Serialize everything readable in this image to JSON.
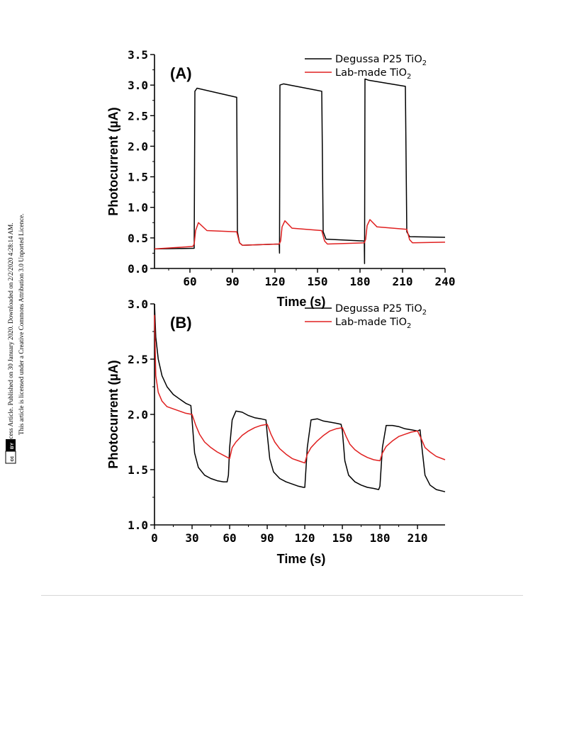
{
  "sidebar": {
    "line1": "Open Access Article. Published on 30 January 2020. Downloaded on 2/2/2020 4:28:14 AM.",
    "line2": "This article is licensed under a Creative Commons Attribution 3.0 Unported Licence.",
    "badge_cc": "cc",
    "badge_by": "BY"
  },
  "chart_data": [
    {
      "type": "line",
      "panel_label": "(A)",
      "xlabel": "Time (s)",
      "ylabel": "Photocurrent (µA)",
      "xlim": [
        35,
        240
      ],
      "ylim": [
        0.0,
        3.5
      ],
      "x_ticks": [
        "60",
        "90",
        "120",
        "150",
        "180",
        "210",
        "240"
      ],
      "y_ticks": [
        "0.0",
        "0.5",
        "1.0",
        "1.5",
        "2.0",
        "2.5",
        "3.0",
        "3.5"
      ],
      "legend_position": "top-right",
      "colors": {
        "Degussa P25 TiO2": "#000000",
        "Lab-made TiO2": "#e02020"
      },
      "series": [
        {
          "name": "Degussa P25 TiO2",
          "legend_base": "Degussa P25 TiO",
          "legend_sub": "2",
          "x": [
            35,
            63,
            63.5,
            65,
            93,
            93.5,
            95,
            97,
            123,
            123.2,
            123.5,
            126,
            153,
            154,
            156,
            183,
            183.2,
            183.5,
            186,
            212,
            213,
            215,
            240
          ],
          "y": [
            0.32,
            0.33,
            2.9,
            2.95,
            2.8,
            0.6,
            0.42,
            0.38,
            0.4,
            0.25,
            3.0,
            3.02,
            2.9,
            0.6,
            0.48,
            0.45,
            0.08,
            3.1,
            3.08,
            2.98,
            0.6,
            0.52,
            0.51
          ]
        },
        {
          "name": "Lab-made TiO2",
          "legend_base": "Lab-made TiO",
          "legend_sub": "2",
          "x": [
            35,
            62,
            63,
            64,
            66,
            72,
            93,
            95,
            97,
            123,
            124,
            125,
            127,
            132,
            153,
            155,
            157,
            183,
            184,
            185,
            187,
            192,
            213,
            215,
            217,
            240
          ],
          "y": [
            0.32,
            0.36,
            0.4,
            0.62,
            0.75,
            0.62,
            0.6,
            0.42,
            0.38,
            0.4,
            0.45,
            0.68,
            0.78,
            0.66,
            0.62,
            0.45,
            0.4,
            0.42,
            0.48,
            0.7,
            0.8,
            0.68,
            0.64,
            0.47,
            0.42,
            0.43
          ]
        }
      ]
    },
    {
      "type": "line",
      "panel_label": "(B)",
      "xlabel": "Time (s)",
      "ylabel": "Photocurrent (µA)",
      "xlim": [
        0,
        232
      ],
      "ylim": [
        1.0,
        3.0
      ],
      "x_ticks": [
        "0",
        "30",
        "60",
        "90",
        "120",
        "150",
        "180",
        "210"
      ],
      "y_ticks": [
        "1.0",
        "1.5",
        "2.0",
        "2.5",
        "3.0"
      ],
      "legend_position": "top-right",
      "colors": {
        "Degussa P25 TiO2": "#000000",
        "Lab-made TiO2": "#e02020"
      },
      "series": [
        {
          "name": "Degussa P25 TiO2",
          "legend_base": "Degussa P25 TiO",
          "legend_sub": "2",
          "x": [
            0,
            1,
            3,
            6,
            10,
            15,
            20,
            25,
            29,
            30,
            32,
            35,
            40,
            45,
            50,
            55,
            58,
            59,
            60,
            62,
            65,
            70,
            75,
            80,
            85,
            89,
            90,
            92,
            95,
            100,
            105,
            110,
            115,
            119,
            120,
            122,
            125,
            130,
            135,
            140,
            145,
            149,
            150,
            152,
            155,
            160,
            165,
            170,
            175,
            179,
            180,
            182,
            185,
            190,
            195,
            200,
            205,
            210,
            212,
            214,
            216,
            220,
            225,
            232
          ],
          "y": [
            3.0,
            2.7,
            2.5,
            2.35,
            2.25,
            2.18,
            2.14,
            2.1,
            2.08,
            1.95,
            1.65,
            1.52,
            1.45,
            1.42,
            1.4,
            1.39,
            1.39,
            1.45,
            1.7,
            1.95,
            2.03,
            2.02,
            1.99,
            1.97,
            1.96,
            1.95,
            1.82,
            1.6,
            1.48,
            1.42,
            1.39,
            1.37,
            1.35,
            1.34,
            1.34,
            1.7,
            1.95,
            1.96,
            1.94,
            1.93,
            1.92,
            1.91,
            1.85,
            1.58,
            1.45,
            1.39,
            1.36,
            1.34,
            1.33,
            1.32,
            1.35,
            1.7,
            1.9,
            1.9,
            1.89,
            1.87,
            1.86,
            1.85,
            1.86,
            1.65,
            1.45,
            1.36,
            1.32,
            1.3
          ]
        },
        {
          "name": "Lab-made TiO2",
          "legend_base": "Lab-made TiO",
          "legend_sub": "2",
          "x": [
            0,
            1,
            3,
            6,
            10,
            15,
            20,
            25,
            30,
            33,
            36,
            40,
            45,
            50,
            55,
            60,
            62,
            65,
            70,
            75,
            80,
            85,
            90,
            93,
            96,
            100,
            105,
            110,
            115,
            120,
            122,
            125,
            130,
            135,
            140,
            145,
            150,
            153,
            156,
            160,
            165,
            170,
            175,
            180,
            182,
            185,
            190,
            195,
            200,
            205,
            210,
            213,
            216,
            220,
            225,
            232
          ],
          "y": [
            2.9,
            2.35,
            2.2,
            2.12,
            2.07,
            2.05,
            2.03,
            2.01,
            2.0,
            1.9,
            1.82,
            1.75,
            1.7,
            1.66,
            1.63,
            1.6,
            1.7,
            1.75,
            1.81,
            1.85,
            1.88,
            1.9,
            1.91,
            1.82,
            1.75,
            1.69,
            1.64,
            1.6,
            1.58,
            1.56,
            1.64,
            1.7,
            1.76,
            1.81,
            1.85,
            1.87,
            1.88,
            1.8,
            1.73,
            1.68,
            1.64,
            1.61,
            1.59,
            1.58,
            1.65,
            1.71,
            1.76,
            1.8,
            1.82,
            1.84,
            1.85,
            1.78,
            1.7,
            1.66,
            1.62,
            1.59
          ]
        }
      ]
    }
  ]
}
